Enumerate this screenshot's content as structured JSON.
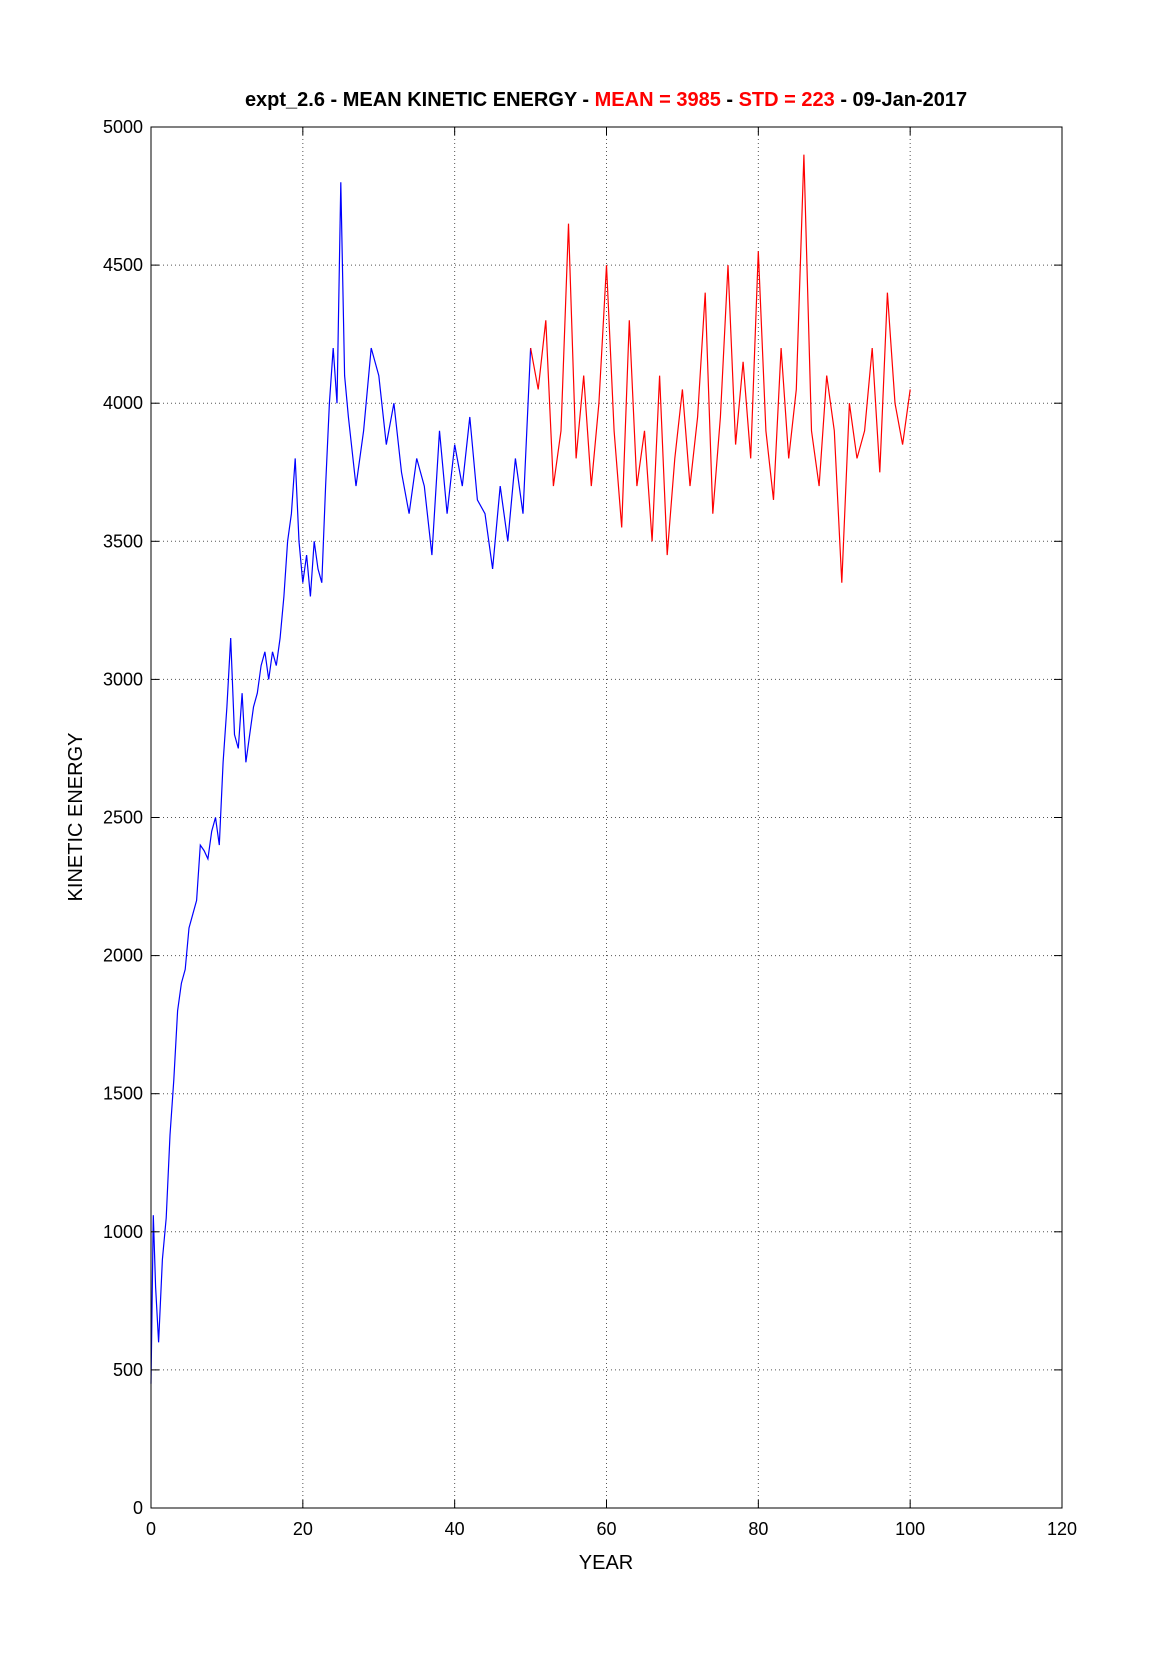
{
  "chart_data": {
    "type": "line",
    "title": {
      "prefix": "expt_2.6 - MEAN KINETIC ENERGY - ",
      "mean_label": "MEAN =  3985",
      "sep1": " - ",
      "std_label": "STD =  223",
      "suffix": " - 09-Jan-2017"
    },
    "xlabel": "YEAR",
    "ylabel": "KINETIC ENERGY",
    "xlim": [
      0,
      120
    ],
    "ylim": [
      0,
      5000
    ],
    "xticks": [
      "0",
      "20",
      "40",
      "60",
      "80",
      "100",
      "120"
    ],
    "yticks": [
      "0",
      "500",
      "1000",
      "1500",
      "2000",
      "2500",
      "3000",
      "3500",
      "4000",
      "4500",
      "5000"
    ],
    "grid": true,
    "colors": {
      "spinup": "#0000ff",
      "analysis": "#ff0000",
      "accent": "#ff0000"
    },
    "series": [
      {
        "color": "#0000ff",
        "x": [
          0,
          0.3,
          0.6,
          1,
          1.5,
          2,
          2.5,
          3,
          3.5,
          4,
          4.5,
          5,
          5.5,
          6,
          6.5,
          7,
          7.5,
          8,
          8.5,
          9,
          9.5,
          10,
          10.5,
          11,
          11.5,
          12,
          12.5,
          13,
          13.5,
          14,
          14.5,
          15,
          15.5,
          16,
          16.5,
          17,
          17.5,
          18,
          18.5,
          19,
          19.5,
          20,
          20.5,
          21,
          21.5,
          22,
          22.5,
          23,
          23.5,
          24,
          24.5,
          25,
          25.5,
          26,
          27,
          28,
          29,
          30,
          31,
          32,
          33,
          34,
          35,
          36,
          37,
          38,
          39,
          40,
          41,
          42,
          43,
          44,
          45,
          46,
          47,
          48,
          49,
          50
        ],
        "values": [
          450,
          1060,
          800,
          600,
          900,
          1050,
          1350,
          1550,
          1800,
          1900,
          1950,
          2100,
          2150,
          2200,
          2400,
          2380,
          2350,
          2450,
          2500,
          2400,
          2700,
          2900,
          3150,
          2800,
          2750,
          2950,
          2700,
          2800,
          2900,
          2950,
          3050,
          3100,
          3000,
          3100,
          3050,
          3150,
          3300,
          3500,
          3600,
          3800,
          3500,
          3350,
          3450,
          3300,
          3500,
          3400,
          3350,
          3700,
          4000,
          4200,
          4000,
          4800,
          4100,
          3950,
          3700,
          3900,
          4200,
          4100,
          3850,
          4000,
          3750,
          3600,
          3800,
          3700,
          3450,
          3900,
          3600,
          3850,
          3700,
          3950,
          3650,
          3600,
          3400,
          3700,
          3500,
          3800,
          3600,
          4200
        ]
      },
      {
        "color": "#ff0000",
        "x": [
          50,
          51,
          52,
          53,
          54,
          55,
          56,
          57,
          58,
          59,
          60,
          61,
          62,
          63,
          64,
          65,
          66,
          67,
          68,
          69,
          70,
          71,
          72,
          73,
          74,
          75,
          76,
          77,
          78,
          79,
          80,
          81,
          82,
          83,
          84,
          85,
          86,
          87,
          88,
          89,
          90,
          91,
          92,
          93,
          94,
          95,
          96,
          97,
          98,
          99,
          100
        ],
        "values": [
          4200,
          4050,
          4300,
          3700,
          3900,
          4650,
          3800,
          4100,
          3700,
          4000,
          4500,
          3900,
          3550,
          4300,
          3700,
          3900,
          3500,
          4100,
          3450,
          3800,
          4050,
          3700,
          3950,
          4400,
          3600,
          3950,
          4500,
          3850,
          4150,
          3800,
          4550,
          3900,
          3650,
          4200,
          3800,
          4050,
          4900,
          3900,
          3700,
          4100,
          3900,
          3350,
          4000,
          3800,
          3900,
          4200,
          3750,
          4400,
          4000,
          3850,
          4050
        ]
      }
    ]
  }
}
